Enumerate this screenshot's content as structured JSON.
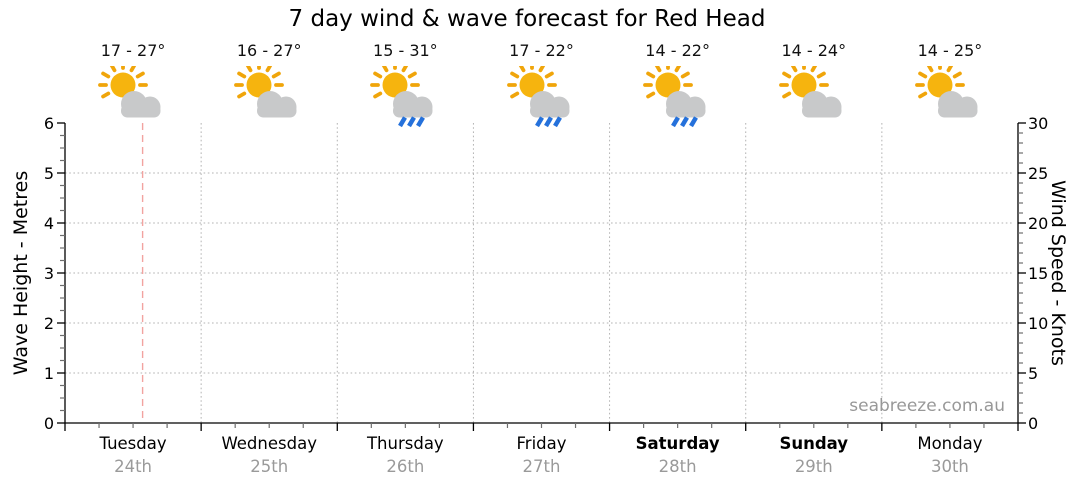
{
  "title": "7 day wind & wave forecast for Red Head",
  "watermark": "seabreeze.com.au",
  "chart_data": {
    "type": "line",
    "title": "7 day wind & wave forecast for Red Head",
    "series": [],
    "series_note": "plot area is empty - no wave/wind curves are drawn, only grid",
    "left_axis": {
      "label": "Wave Height - Metres",
      "min": 0,
      "max": 6,
      "major_step": 1,
      "minor_step": 0.25
    },
    "right_axis": {
      "label": "Wind Speed - Knots",
      "min": 0,
      "max": 30,
      "major_step": 5,
      "minor_step": 1
    },
    "x_axis": {
      "minor_ticks_per_day": 3,
      "days": [
        {
          "name": "Tuesday",
          "date": "24th",
          "temp_range": "17 - 27°",
          "icon": "partly-cloudy",
          "weekend": false
        },
        {
          "name": "Wednesday",
          "date": "25th",
          "temp_range": "16 - 27°",
          "icon": "partly-cloudy",
          "weekend": false
        },
        {
          "name": "Thursday",
          "date": "26th",
          "temp_range": "15 - 31°",
          "icon": "partly-cloudy-rain",
          "weekend": false
        },
        {
          "name": "Friday",
          "date": "27th",
          "temp_range": "17 - 22°",
          "icon": "partly-cloudy-rain",
          "weekend": false
        },
        {
          "name": "Saturday",
          "date": "28th",
          "temp_range": "14 - 22°",
          "icon": "partly-cloudy-rain",
          "weekend": true
        },
        {
          "name": "Sunday",
          "date": "29th",
          "temp_range": "14 - 24°",
          "icon": "partly-cloudy",
          "weekend": true
        },
        {
          "name": "Monday",
          "date": "30th",
          "temp_range": "14 - 25°",
          "icon": "partly-cloudy",
          "weekend": false
        }
      ]
    },
    "now_marker": {
      "day": "Tuesday",
      "day_fraction": 0.57
    },
    "grid": true,
    "legend": false
  },
  "colors": {
    "sun": "#F6B40E",
    "sun_rays": "#F0A50A",
    "cloud": "#C8C9CA",
    "rain": "#2571DB",
    "now_line": "#F2A3A0",
    "grid": "#B3B3B3",
    "axis": "#000000",
    "minor_tick": "#6E6E6E",
    "date_text": "#9A9A9A",
    "watermark_text": "#989898",
    "label_text": "#000000"
  }
}
